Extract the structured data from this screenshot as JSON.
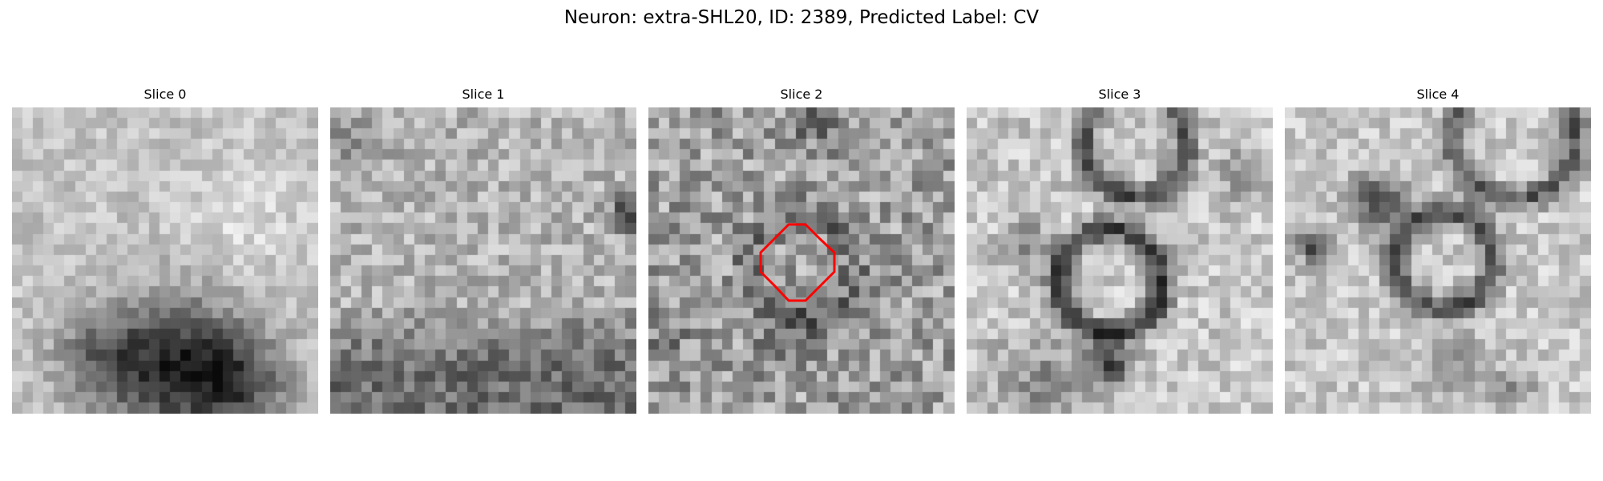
{
  "figure": {
    "title": "Neuron: extra-SHL20, ID: 2389, Predicted Label: CV"
  },
  "panels": [
    {
      "title": "Slice 0"
    },
    {
      "title": "Slice 1"
    },
    {
      "title": "Slice 2",
      "marker": {
        "shape": "octagon",
        "color": "#ff0000"
      }
    },
    {
      "title": "Slice 3"
    },
    {
      "title": "Slice 4"
    }
  ],
  "image_style": {
    "colormap": "grayscale"
  }
}
